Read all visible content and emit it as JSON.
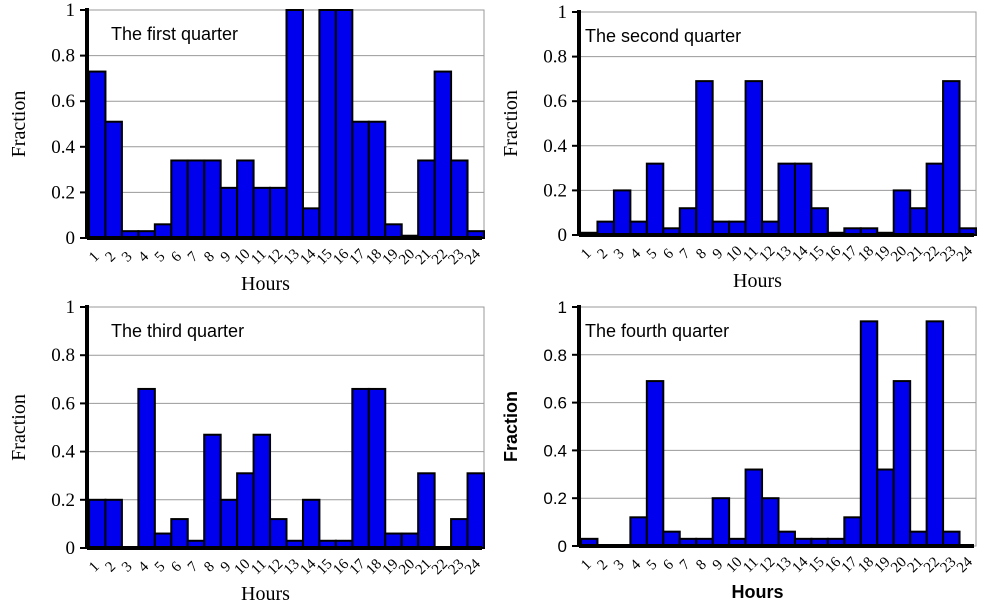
{
  "colors": {
    "bar_fill": "#0000ee",
    "bar_stroke": "#000000",
    "grid": "#999999",
    "axis": "#000000",
    "background": "#ffffff"
  },
  "chart_data": [
    {
      "type": "bar",
      "title": "The first quarter",
      "xlabel": "Hours",
      "ylabel": "Fraction",
      "ylim": [
        0,
        1
      ],
      "yticks": [
        "0",
        "0.2",
        "0.4",
        "0.6",
        "0.8",
        "1"
      ],
      "categories": [
        "1",
        "2",
        "3",
        "4",
        "5",
        "6",
        "7",
        "8",
        "9",
        "10",
        "11",
        "12",
        "13",
        "14",
        "15",
        "16",
        "17",
        "18",
        "19",
        "20",
        "21",
        "22",
        "23",
        "24"
      ],
      "values": [
        0.73,
        0.51,
        0.03,
        0.03,
        0.06,
        0.34,
        0.34,
        0.34,
        0.22,
        0.34,
        0.22,
        0.22,
        1.0,
        0.13,
        1.0,
        1.0,
        0.51,
        0.51,
        0.06,
        0.01,
        0.34,
        0.73,
        0.34,
        0.03
      ],
      "grid": true,
      "bold_axis_labels": false
    },
    {
      "type": "bar",
      "title": "The second quarter",
      "xlabel": "Hours",
      "ylabel": "Fraction",
      "ylim": [
        0,
        1
      ],
      "yticks": [
        "0",
        "0.2",
        "0.4",
        "0.6",
        "0.8",
        "1"
      ],
      "categories": [
        "1",
        "2",
        "3",
        "4",
        "5",
        "6",
        "7",
        "8",
        "9",
        "10",
        "11",
        "12",
        "13",
        "14",
        "15",
        "16",
        "17",
        "18",
        "19",
        "20",
        "21",
        "22",
        "23",
        "24"
      ],
      "values": [
        0.01,
        0.06,
        0.2,
        0.06,
        0.32,
        0.03,
        0.12,
        0.69,
        0.06,
        0.06,
        0.69,
        0.06,
        0.32,
        0.32,
        0.12,
        0.01,
        0.03,
        0.03,
        0.01,
        0.2,
        0.12,
        0.32,
        0.69,
        0.03
      ],
      "grid": true,
      "bold_axis_labels": false
    },
    {
      "type": "bar",
      "title": "The third quarter",
      "xlabel": "Hours",
      "ylabel": "Fraction",
      "ylim": [
        0,
        1
      ],
      "yticks": [
        "0",
        "0.2",
        "0.4",
        "0.6",
        "0.8",
        "1"
      ],
      "categories": [
        "1",
        "2",
        "3",
        "4",
        "5",
        "6",
        "7",
        "8",
        "9",
        "10",
        "11",
        "12",
        "13",
        "14",
        "15",
        "16",
        "17",
        "18",
        "19",
        "20",
        "21",
        "22",
        "23",
        "24"
      ],
      "values": [
        0.2,
        0.2,
        0.0,
        0.66,
        0.06,
        0.12,
        0.03,
        0.47,
        0.2,
        0.31,
        0.47,
        0.12,
        0.03,
        0.2,
        0.03,
        0.03,
        0.66,
        0.66,
        0.06,
        0.06,
        0.31,
        0.0,
        0.12,
        0.31
      ],
      "grid": true,
      "bold_axis_labels": false
    },
    {
      "type": "bar",
      "title": "The fourth quarter",
      "xlabel": "Hours",
      "ylabel": "Fraction",
      "ylim": [
        0,
        1
      ],
      "yticks": [
        "0",
        "0.2",
        "0.4",
        "0.6",
        "0.8",
        "1"
      ],
      "categories": [
        "1",
        "2",
        "3",
        "4",
        "5",
        "6",
        "7",
        "8",
        "9",
        "10",
        "11",
        "12",
        "13",
        "14",
        "15",
        "16",
        "17",
        "18",
        "19",
        "20",
        "21",
        "22",
        "23",
        "24"
      ],
      "values": [
        0.03,
        0.0,
        0.0,
        0.12,
        0.69,
        0.06,
        0.03,
        0.03,
        0.2,
        0.03,
        0.32,
        0.2,
        0.06,
        0.03,
        0.03,
        0.03,
        0.12,
        0.94,
        0.32,
        0.69,
        0.06,
        0.94,
        0.06,
        0.0
      ],
      "grid": true,
      "bold_axis_labels": true
    }
  ]
}
